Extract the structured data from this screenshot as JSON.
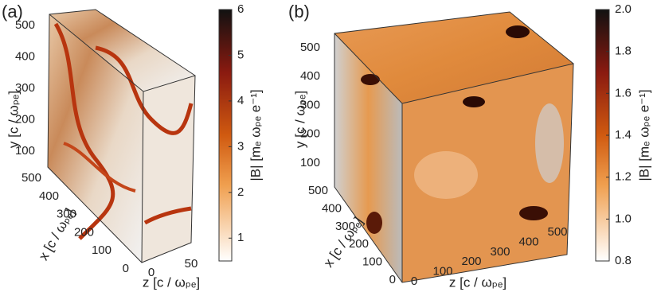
{
  "panels": [
    {
      "label": "(a)",
      "colorbar": {
        "label": "|B| [mₑ ωₚₑ e⁻¹]",
        "lim": [
          0.5,
          6
        ],
        "ticks": [
          1,
          2,
          3,
          4,
          5,
          6
        ]
      },
      "y_axis": {
        "label": "y [c / ωₚₑ]",
        "ticks": [
          100,
          200,
          300,
          400,
          500
        ]
      },
      "x_axis": {
        "label": "x [c / ωₚₑ]",
        "ticks": [
          500,
          400,
          300,
          200,
          100,
          0
        ]
      },
      "z_axis": {
        "label": "z [c / ωₚₑ]",
        "ticks": [
          0,
          50
        ]
      }
    },
    {
      "label": "(b)",
      "colorbar": {
        "label": "|B| [mₑ ωₚₑ e⁻¹]",
        "lim": [
          0.8,
          2.0
        ],
        "ticks": [
          {
            "value": 0.8,
            "label": "0.8"
          },
          {
            "value": 1.0,
            "label": "1.0"
          },
          1.2,
          1.4,
          1.6,
          1.8,
          {
            "value": 2.0,
            "label": "2.0"
          }
        ]
      },
      "y_axis": {
        "label": "y [c / ωₚₑ]",
        "ticks": [
          100,
          200,
          300,
          400,
          500
        ]
      },
      "x_axis": {
        "label": "x [c / ωₚₑ]",
        "ticks": [
          500,
          400,
          300,
          200,
          100,
          0
        ]
      },
      "z_axis": {
        "label": "z [c / ωₚₑ]",
        "ticks": [
          0,
          100,
          200,
          300,
          400,
          500
        ]
      }
    }
  ]
}
